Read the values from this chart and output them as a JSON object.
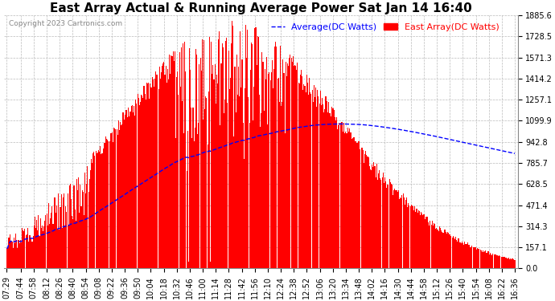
{
  "title": "East Array Actual & Running Average Power Sat Jan 14 16:40",
  "copyright": "Copyright 2023 Cartronics.com",
  "legend_avg": "Average(DC Watts)",
  "legend_east": "East Array(DC Watts)",
  "legend_avg_color": "blue",
  "legend_east_color": "red",
  "yticks": [
    0.0,
    157.1,
    314.3,
    471.4,
    628.5,
    785.7,
    942.8,
    1099.9,
    1257.1,
    1414.2,
    1571.3,
    1728.5,
    1885.6
  ],
  "ymax": 1885.6,
  "ymin": 0.0,
  "background_color": "#ffffff",
  "grid_color": "#bbbbbb",
  "bar_color": "#ff0000",
  "avg_line_color": "#0000ff",
  "title_fontsize": 11,
  "copyright_fontsize": 6.5,
  "legend_fontsize": 8,
  "tick_fontsize": 7,
  "xtick_labels": [
    "07:29",
    "07:44",
    "07:58",
    "08:12",
    "08:26",
    "08:40",
    "08:54",
    "09:08",
    "09:22",
    "09:36",
    "09:50",
    "10:04",
    "10:18",
    "10:32",
    "10:46",
    "11:00",
    "11:14",
    "11:28",
    "11:42",
    "11:56",
    "12:10",
    "12:24",
    "12:38",
    "12:52",
    "13:06",
    "13:20",
    "13:34",
    "13:48",
    "14:02",
    "14:16",
    "14:30",
    "14:44",
    "14:58",
    "15:12",
    "15:26",
    "15:40",
    "15:54",
    "16:08",
    "16:22",
    "16:36"
  ],
  "n_ticks": 40,
  "seed": 17,
  "total_points": 560
}
